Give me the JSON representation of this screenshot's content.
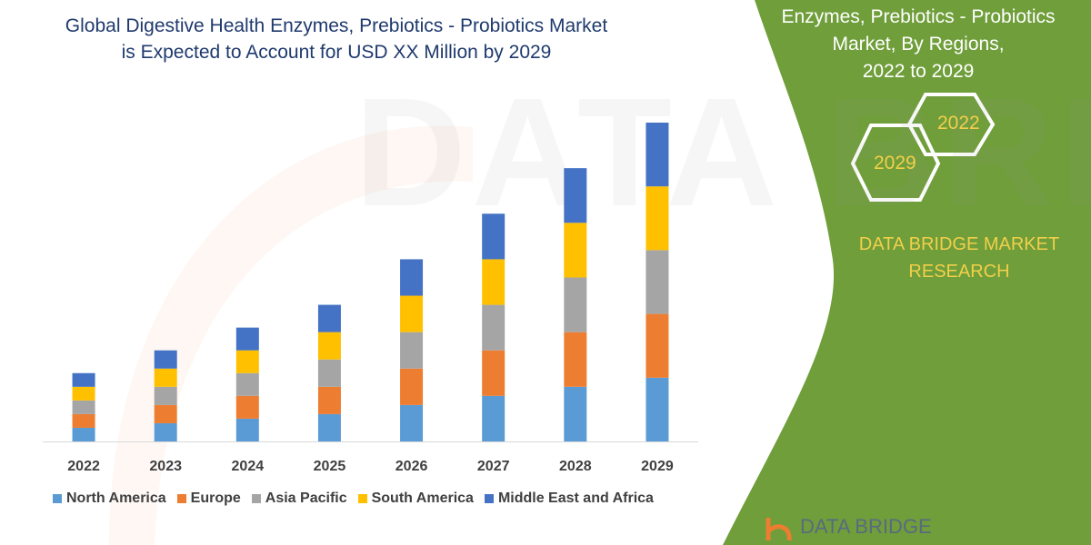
{
  "title": [
    "Global Digestive Health Enzymes, Prebiotics - Probiotics Market",
    "is Expected to Account for USD XX Million by 2029"
  ],
  "side_title": [
    "Enzymes, Prebiotics - Probiotics",
    "Market, By Regions,",
    "2022 to 2029"
  ],
  "hexagons": [
    "2022",
    "2029"
  ],
  "brand": [
    "DATA BRIDGE MARKET",
    "RESEARCH"
  ],
  "logo_text": "DATA BRIDGE",
  "watermark": "DATA BRIDGE",
  "colors": {
    "green_panel": "#6f9e3a",
    "title": "#1f3a6e",
    "accent_text": "#f2cf4a"
  },
  "chart_data": {
    "type": "bar",
    "stacked": true,
    "title": "Global Digestive Health Enzymes, Prebiotics - Probiotics Market is Expected to Account for USD XX Million by 2029",
    "xlabel": "",
    "ylabel": "",
    "y_axis_shown": false,
    "ylim": [
      0,
      350
    ],
    "grid": false,
    "legend_position": "bottom",
    "categories": [
      "2022",
      "2023",
      "2024",
      "2025",
      "2026",
      "2027",
      "2028",
      "2029"
    ],
    "series": [
      {
        "name": "North America",
        "color": "#5b9bd5",
        "values": [
          15,
          20,
          25,
          30,
          40,
          50,
          60,
          70
        ]
      },
      {
        "name": "Europe",
        "color": "#ed7d31",
        "values": [
          15,
          20,
          25,
          30,
          40,
          50,
          60,
          70
        ]
      },
      {
        "name": "Asia Pacific",
        "color": "#a5a5a5",
        "values": [
          15,
          20,
          25,
          30,
          40,
          50,
          60,
          70
        ]
      },
      {
        "name": "South America",
        "color": "#ffc000",
        "values": [
          15,
          20,
          25,
          30,
          40,
          50,
          60,
          70
        ]
      },
      {
        "name": "Middle East and Africa",
        "color": "#4472c4",
        "values": [
          15,
          20,
          25,
          30,
          40,
          50,
          60,
          70
        ]
      }
    ]
  }
}
